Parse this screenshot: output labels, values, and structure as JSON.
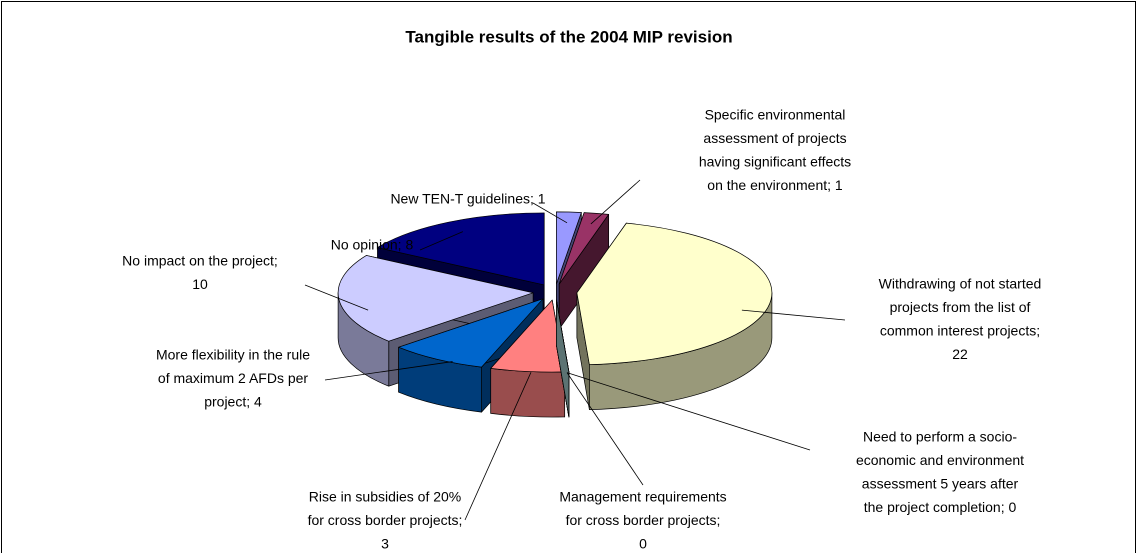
{
  "chart_data": {
    "type": "pie3d",
    "title": "Tangible results of the 2004 MIP revision",
    "values": [
      1,
      1,
      22,
      0,
      0,
      3,
      4,
      10,
      8
    ],
    "value_labels": [
      [
        "New TEN-T guidelines; 1"
      ],
      [
        "Specific environmental",
        "assessment of projects",
        "having significant effects",
        "on the environment; 1"
      ],
      [
        "Withdrawing of not started",
        "projects from the list of",
        "common interest projects;",
        "22"
      ],
      [
        "Need to perform a socio-",
        "economic and environment",
        "assessment 5 years after",
        "the project completion; 0"
      ],
      [
        "Management requirements",
        "for cross border projects;",
        "0"
      ],
      [
        "Rise in subsidies of 20%",
        "for cross border projects;",
        "3"
      ],
      [
        "More flexibility in the rule",
        "of maximum 2 AFDs per",
        "project; 4"
      ],
      [
        "No impact on the project;",
        "10"
      ],
      [
        "No opinion; 8"
      ]
    ],
    "colors": [
      "#9999ff",
      "#993366",
      "#ffffcc",
      "#660066",
      "#ccffff",
      "#ff8080",
      "#0066cc",
      "#ccccff",
      "#000080"
    ]
  }
}
